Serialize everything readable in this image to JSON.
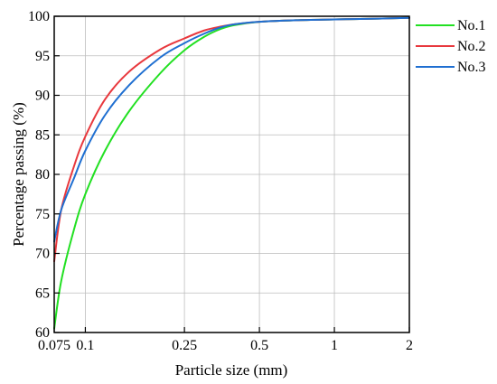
{
  "chart_data": {
    "type": "line",
    "xlabel": "Particle size (mm)",
    "ylabel": "Percentage passing (%)",
    "xscale": "log",
    "xlim": [
      0.075,
      2
    ],
    "ylim": [
      60,
      100
    ],
    "xticks": [
      0.075,
      0.1,
      0.25,
      0.5,
      1,
      2
    ],
    "xtick_labels": [
      "0.075",
      "0.1",
      "0.25",
      "0.5",
      "1",
      "2"
    ],
    "yticks": [
      60,
      65,
      70,
      75,
      80,
      85,
      90,
      95,
      100
    ],
    "ytick_labels": [
      "60",
      "65",
      "70",
      "75",
      "80",
      "85",
      "90",
      "95",
      "100"
    ],
    "grid": true,
    "legend_position": "right",
    "series": [
      {
        "name": "No.1",
        "color": "#22e022",
        "x": [
          0.075,
          0.08,
          0.09,
          0.1,
          0.12,
          0.15,
          0.2,
          0.25,
          0.3,
          0.35,
          0.4,
          0.5,
          0.7,
          1,
          1.5,
          2
        ],
        "y": [
          60.5,
          66.5,
          73.0,
          77.5,
          83.0,
          88.0,
          92.8,
          95.7,
          97.4,
          98.4,
          98.9,
          99.3,
          99.5,
          99.6,
          99.7,
          99.8
        ]
      },
      {
        "name": "No.2",
        "color": "#e8383d",
        "x": [
          0.075,
          0.08,
          0.09,
          0.1,
          0.12,
          0.15,
          0.2,
          0.25,
          0.3,
          0.35,
          0.4,
          0.5,
          0.7,
          1,
          1.5,
          2
        ],
        "y": [
          69.0,
          75.5,
          81.0,
          84.8,
          89.5,
          93.0,
          95.8,
          97.2,
          98.2,
          98.7,
          99.0,
          99.3,
          99.5,
          99.6,
          99.7,
          99.8
        ]
      },
      {
        "name": "No.3",
        "color": "#1f6fd1",
        "x": [
          0.075,
          0.08,
          0.09,
          0.1,
          0.12,
          0.15,
          0.2,
          0.25,
          0.3,
          0.35,
          0.4,
          0.5,
          0.7,
          1,
          1.5,
          2
        ],
        "y": [
          71.5,
          75.5,
          79.5,
          83.0,
          87.5,
          91.3,
          94.8,
          96.6,
          97.8,
          98.6,
          99.0,
          99.3,
          99.5,
          99.6,
          99.7,
          99.8
        ]
      }
    ]
  }
}
